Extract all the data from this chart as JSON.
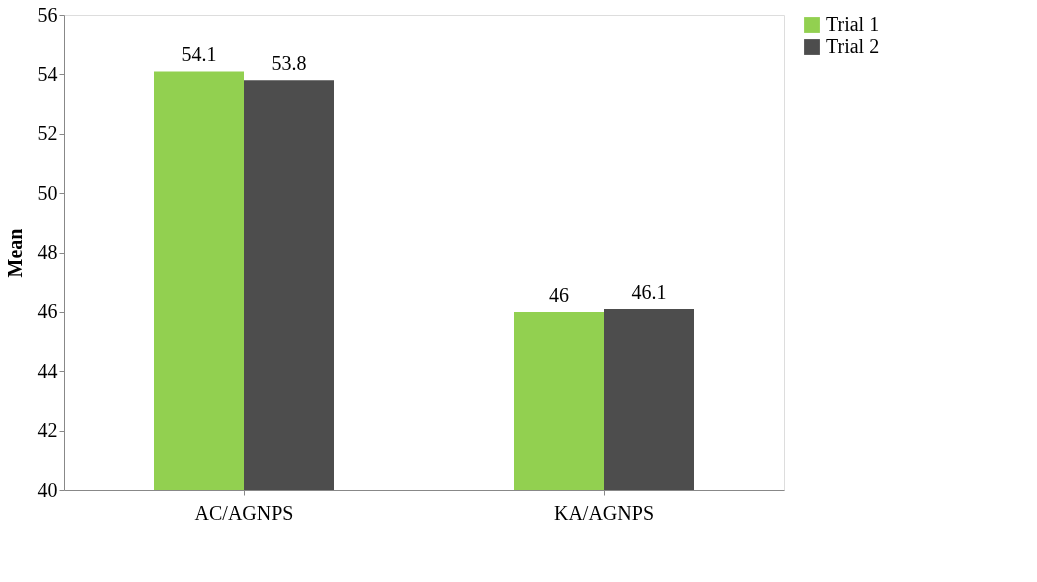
{
  "chart_data": {
    "type": "bar",
    "ylabel": "Mean",
    "categories": [
      "AC/AGNPS",
      "KA/AGNPS"
    ],
    "series": [
      {
        "name": "Trial 1",
        "color": "#92d050",
        "values": [
          54.1,
          46
        ]
      },
      {
        "name": "Trial 2",
        "color": "#4d4d4d",
        "values": [
          53.8,
          46.1
        ]
      }
    ],
    "ylim": [
      40,
      56
    ],
    "yticks": [
      40,
      42,
      44,
      46,
      48,
      50,
      52,
      54,
      56
    ],
    "grid": false,
    "legend": "right",
    "data_labels": true
  }
}
